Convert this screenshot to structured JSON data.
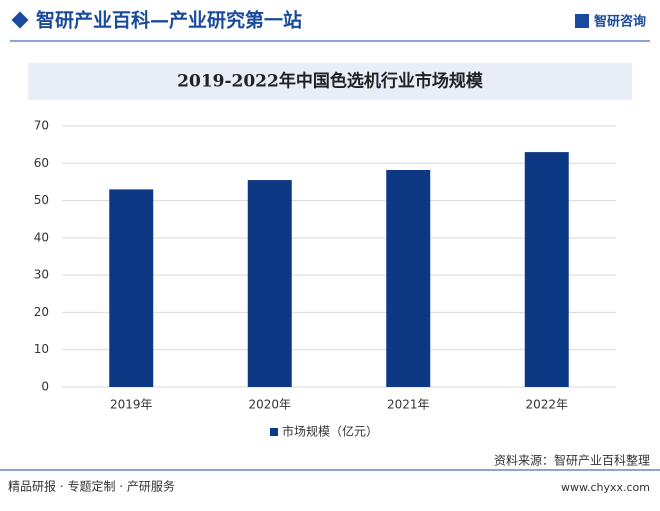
{
  "header": {
    "title": "智研产业百科—产业研究第一站",
    "logo": "智研咨询"
  },
  "chart_data": {
    "type": "bar",
    "title": "2019-2022年中国色选机行业市场规模",
    "categories": [
      "2019年",
      "2020年",
      "2021年",
      "2022年"
    ],
    "series": [
      {
        "name": "市场规模（亿元）",
        "color": "#0d3883",
        "values": [
          53,
          55.5,
          58.2,
          63
        ]
      }
    ],
    "ylim": [
      0,
      70
    ],
    "yticks": [
      0,
      10,
      20,
      30,
      40,
      50,
      60,
      70
    ],
    "grid": true,
    "legend": "bottom"
  },
  "footer": {
    "source": "资料来源：智研产业百科整理",
    "url": "www.chyxx.com",
    "services": "精品研报 · 专题定制 · 产研服务"
  }
}
